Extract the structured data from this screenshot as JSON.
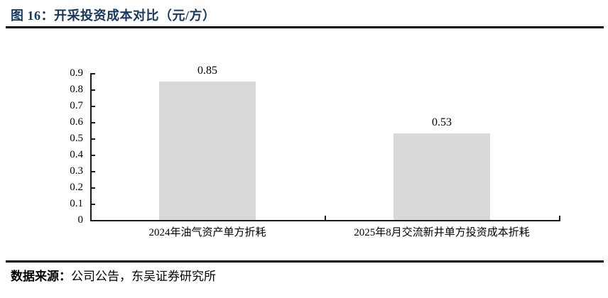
{
  "header": {
    "title": "图 16：开采投资成本对比（元/方）"
  },
  "footer": {
    "source_prefix": "数据来源：",
    "source_text": "公司公告，东吴证券研究所"
  },
  "colors": {
    "title": "#17375e",
    "rule": "#000000",
    "axis": "#1a1a1a",
    "bar": "#d9d9d9",
    "text": "#000000"
  },
  "chart_data": {
    "type": "bar",
    "title": "开采投资成本对比（元/方）",
    "categories": [
      "2024年油气资产单方折耗",
      "2025年8月交流新井单方投资成本折耗"
    ],
    "values": [
      0.85,
      0.53
    ],
    "value_labels": [
      "0.85",
      "0.53"
    ],
    "xlabel": "",
    "ylabel": "",
    "ylim": [
      0,
      0.9
    ],
    "ytick_step": 0.1,
    "ytick_labels": [
      "0.9",
      "0.8",
      "0.7",
      "0.6",
      "0.5",
      "0.4",
      "0.3",
      "0.2",
      "0.1",
      "0"
    ],
    "grid": false,
    "legend": null,
    "bar_color": "#d9d9d9"
  }
}
